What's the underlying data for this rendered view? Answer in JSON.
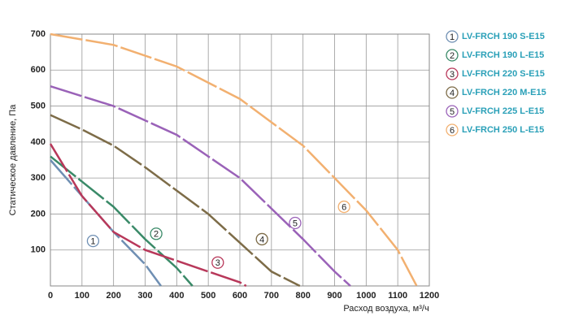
{
  "chart_data": {
    "type": "line",
    "x_label": "Расход воздуха, м³/ч",
    "y_label": "Статическое давление, Па",
    "xlim": [
      0,
      1200
    ],
    "xticks": [
      0,
      100,
      200,
      300,
      400,
      500,
      600,
      700,
      800,
      900,
      1000,
      1100,
      1200
    ],
    "ylim": [
      0,
      700
    ],
    "yticks": [
      100,
      200,
      300,
      400,
      500,
      600,
      700
    ],
    "grid": true,
    "legend": "right",
    "series": [
      {
        "name": "LV-FRCH 190 S-E15",
        "label": "1",
        "label_x": 135,
        "label_y": 125,
        "color": "#6f8fb3",
        "x": [
          0,
          100,
          200,
          300,
          350
        ],
        "values": [
          350,
          250,
          150,
          60,
          0
        ]
      },
      {
        "name": "LV-FRCH 190 L-E15",
        "label": "2",
        "label_x": 335,
        "label_y": 145,
        "color": "#3a8a68",
        "x": [
          0,
          100,
          200,
          300,
          400,
          450
        ],
        "values": [
          360,
          290,
          220,
          130,
          50,
          0
        ]
      },
      {
        "name": "LV-FRCH 220 S-E15",
        "label": "3",
        "label_x": 530,
        "label_y": 65,
        "color": "#b8385a",
        "x": [
          0,
          100,
          200,
          300,
          400,
          500,
          600,
          620
        ],
        "values": [
          395,
          250,
          150,
          100,
          70,
          40,
          10,
          0
        ]
      },
      {
        "name": "LV-FRCH 220 M-E15",
        "label": "4",
        "label_x": 670,
        "label_y": 130,
        "color": "#7d6c48",
        "x": [
          0,
          100,
          200,
          300,
          400,
          500,
          600,
          700,
          790
        ],
        "values": [
          475,
          435,
          390,
          330,
          265,
          200,
          120,
          40,
          0
        ]
      },
      {
        "name": "LV-FRCH 225 L-E15",
        "label": "5",
        "label_x": 775,
        "label_y": 175,
        "color": "#9a62b8",
        "x": [
          0,
          200,
          400,
          600,
          800,
          900,
          950
        ],
        "values": [
          555,
          500,
          420,
          300,
          130,
          40,
          0
        ]
      },
      {
        "name": "LV-FRCH 250 L-E15",
        "label": "6",
        "label_x": 930,
        "label_y": 220,
        "color": "#f2b070",
        "x": [
          0,
          200,
          400,
          600,
          800,
          1000,
          1100,
          1160
        ],
        "values": [
          700,
          670,
          610,
          520,
          390,
          210,
          100,
          0
        ]
      }
    ]
  }
}
